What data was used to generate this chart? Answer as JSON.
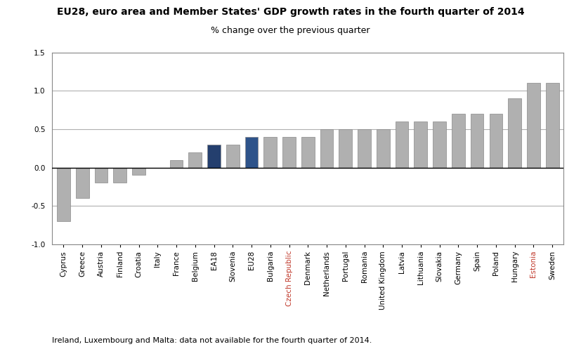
{
  "title": "EU28, euro area and Member States' GDP growth rates in the fourth quarter of 2014",
  "subtitle": "% change over the previous quarter",
  "footnote": "Ireland, Luxembourg and Malta: data not available for the fourth quarter of 2014.",
  "categories": [
    "Cyprus",
    "Greece",
    "Austria",
    "Finland",
    "Croatia",
    "Italy",
    "France",
    "Belgium",
    "EA18",
    "Slovenia",
    "EU28",
    "Bulgaria",
    "Czech Republic",
    "Denmark",
    "Netherlands",
    "Portugal",
    "Romania",
    "United Kingdom",
    "Latvia",
    "Lithuania",
    "Slovakia",
    "Germany",
    "Spain",
    "Poland",
    "Hungary",
    "Estonia",
    "Sweden"
  ],
  "values": [
    -0.7,
    -0.4,
    -0.2,
    -0.2,
    -0.1,
    0.0,
    0.1,
    0.2,
    0.3,
    0.3,
    0.4,
    0.4,
    0.4,
    0.4,
    0.5,
    0.5,
    0.5,
    0.5,
    0.6,
    0.6,
    0.6,
    0.7,
    0.7,
    0.7,
    0.9,
    1.1,
    1.1
  ],
  "bar_colors": [
    "#b0b0b0",
    "#b0b0b0",
    "#b0b0b0",
    "#b0b0b0",
    "#b0b0b0",
    "#b0b0b0",
    "#b0b0b0",
    "#b0b0b0",
    "#243f6e",
    "#b0b0b0",
    "#2e538a",
    "#b0b0b0",
    "#b0b0b0",
    "#b0b0b0",
    "#b0b0b0",
    "#b0b0b0",
    "#b0b0b0",
    "#b0b0b0",
    "#b0b0b0",
    "#b0b0b0",
    "#b0b0b0",
    "#b0b0b0",
    "#b0b0b0",
    "#b0b0b0",
    "#b0b0b0",
    "#b0b0b0",
    "#b0b0b0"
  ],
  "special_label_color": {
    "Czech Republic": "#c0392b",
    "Estonia": "#c0392b"
  },
  "ylim": [
    -1.0,
    1.5
  ],
  "yticks": [
    -1.0,
    -0.5,
    0.0,
    0.5,
    1.0,
    1.5
  ],
  "title_fontsize": 10,
  "subtitle_fontsize": 9,
  "tick_fontsize": 7.5,
  "footnote_fontsize": 8,
  "background_color": "#ffffff",
  "grid_color": "#b0b0b0",
  "bar_edge_color": "#888888",
  "subtitle_color": "#000000",
  "title_color": "#000000"
}
